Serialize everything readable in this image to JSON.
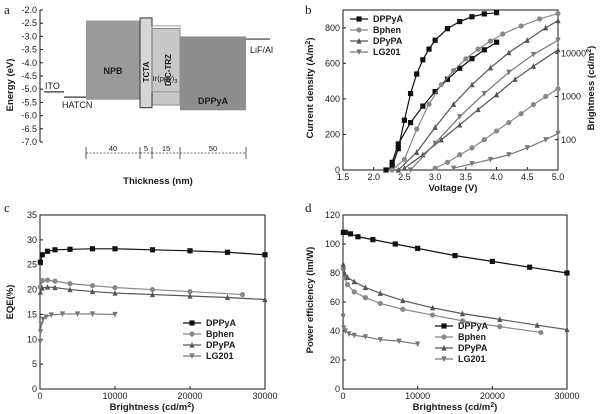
{
  "panels": {
    "a": {
      "letter": "a",
      "ylabel": "Energy (eV)",
      "xlabel": "Thickness (nm)",
      "ylim": [
        -7.0,
        -2.0
      ],
      "yticks": [
        "-2.0",
        "-2.5",
        "-3.0",
        "-3.5",
        "-4.0",
        "-4.5",
        "-5.0",
        "-5.5",
        "-6.0",
        "-6.5",
        "-7.0"
      ],
      "layers": [
        {
          "name": "ITO",
          "label": "ITO",
          "level": -5.1,
          "thickness": null
        },
        {
          "name": "HATCN",
          "label": "HATCN",
          "level": -5.3,
          "thickness": null
        },
        {
          "name": "NPB",
          "label": "NPB",
          "homo": -5.4,
          "lumo": -2.4,
          "thickness": "40"
        },
        {
          "name": "TCTA",
          "label": "TCTA",
          "homo": -5.7,
          "lumo": -2.3,
          "thickness": "5"
        },
        {
          "name": "DIC-TRZ",
          "label": "DIC-TRZ",
          "homo": -5.6,
          "lumo": -2.7,
          "thickness": "15"
        },
        {
          "name": "DPPyA",
          "label": "DPPyA",
          "homo": -5.8,
          "lumo": -3.0,
          "thickness": "50"
        },
        {
          "name": "LiF/Al",
          "label": "LiF/Al",
          "level": -3.1,
          "thickness": null
        }
      ],
      "dopant": {
        "label": "Ir(ppy)",
        "sub": "3",
        "homo": -5.1,
        "lumo": -2.6
      }
    },
    "b": {
      "letter": "b",
      "ylabel": "Current density (A/m",
      "ylabel_sup": "2",
      "ylabel_end": ")",
      "y2label": "Brightness (cd/m",
      "y2label_sup": "2",
      "y2label_end": ")",
      "xlabel": "Voltage (V)"
    },
    "c": {
      "letter": "c",
      "ylabel": "EQE(%)",
      "xlabel": "Brightness (cd/m",
      "xlabel_sup": "2",
      "xlabel_end": ")"
    },
    "d": {
      "letter": "d",
      "ylabel": "Power efficiency (lm/W)",
      "xlabel": "Brightness (cd/m",
      "xlabel_sup": "2",
      "xlabel_end": ")"
    }
  },
  "chart_data": [
    {
      "panel": "b",
      "type": "line",
      "xlabel": "Voltage (V)",
      "ylabel": "Current density (A/m2)",
      "y2label": "Brightness (cd/m2)",
      "xlim": [
        1.5,
        5.0
      ],
      "xticks": [
        1.5,
        2.0,
        2.5,
        3.0,
        3.5,
        4.0,
        4.5,
        5.0
      ],
      "ylim": [
        0,
        900
      ],
      "yticks": [
        0,
        200,
        400,
        600,
        800
      ],
      "y2_scale": "log",
      "y2lim": [
        20,
        100000
      ],
      "y2ticks": [
        100,
        1000,
        10000
      ],
      "y2ticklabels": [
        "100",
        "1000",
        "10000"
      ],
      "series": [
        {
          "name": "DPPyA",
          "marker": "square",
          "color": "#111111",
          "current_density": {
            "x": [
              2.2,
              2.3,
              2.4,
              2.5,
              2.6,
              2.7,
              2.8,
              2.9,
              3.0,
              3.2,
              3.4,
              3.6,
              3.8,
              4.0
            ],
            "y": [
              0,
              20,
              120,
              280,
              430,
              540,
              620,
              680,
              730,
              795,
              835,
              862,
              878,
              885
            ]
          },
          "brightness": {
            "x": [
              2.3,
              2.4,
              2.6,
              2.8,
              3.0,
              3.2,
              3.4,
              3.6,
              3.8,
              4.0
            ],
            "y": [
              30,
              80,
              250,
              600,
              1300,
              2500,
              4500,
              7500,
              12000,
              18000
            ]
          }
        },
        {
          "name": "Bphen",
          "marker": "circle",
          "color": "#888888",
          "current_density": {
            "x": [
              2.3,
              2.5,
              2.7,
              2.9,
              3.1,
              3.3,
              3.5,
              3.7,
              3.9,
              4.1,
              4.4,
              4.7,
              5.0
            ],
            "y": [
              0,
              60,
              230,
              370,
              480,
              560,
              625,
              680,
              725,
              765,
              810,
              850,
              880
            ]
          },
          "brightness": {
            "x": [
              3.0,
              3.2,
              3.4,
              3.6,
              3.8,
              4.0,
              4.2,
              4.4,
              4.6,
              4.8,
              5.0
            ],
            "y": [
              22,
              30,
              45,
              65,
              100,
              160,
              250,
              400,
              650,
              1000,
              1500
            ]
          }
        },
        {
          "name": "DPyPA",
          "marker": "triangle-up",
          "color": "#555555",
          "current_density": {
            "x": [
              2.4,
              2.7,
              3.0,
              3.3,
              3.6,
              3.9,
              4.2,
              4.5,
              4.8,
              5.0
            ],
            "y": [
              0,
              100,
              240,
              370,
              480,
              575,
              660,
              730,
              800,
              840
            ]
          },
          "brightness": {
            "x": [
              2.5,
              2.8,
              3.1,
              3.4,
              3.7,
              4.0,
              4.3,
              4.6,
              5.0
            ],
            "y": [
              22,
              45,
              100,
              220,
              500,
              1100,
              2500,
              5000,
              12000
            ]
          }
        },
        {
          "name": "LG201",
          "marker": "triangle-down",
          "color": "#777777",
          "current_density": {
            "x": [
              2.6,
              3.0,
              3.4,
              3.8,
              4.2,
              4.6,
              5.0
            ],
            "y": [
              0,
              150,
              300,
              430,
              550,
              650,
              730
            ]
          },
          "brightness": {
            "x": [
              3.3,
              3.6,
              3.9,
              4.2,
              4.5,
              4.8,
              5.0
            ],
            "y": [
              22,
              28,
              35,
              45,
              65,
              100,
              140
            ]
          }
        }
      ]
    },
    {
      "panel": "c",
      "type": "line",
      "xlabel": "Brightness (cd/m2)",
      "ylabel": "EQE(%)",
      "xlim": [
        0,
        30000
      ],
      "xticks": [
        0,
        10000,
        20000,
        30000
      ],
      "ylim": [
        0,
        35
      ],
      "yticks": [
        0,
        5,
        10,
        15,
        20,
        25,
        30,
        35
      ],
      "series": [
        {
          "name": "DPPyA",
          "marker": "square",
          "color": "#111111",
          "x": [
            50,
            300,
            1000,
            2000,
            4000,
            7000,
            10000,
            15000,
            20000,
            25000,
            30000
          ],
          "y": [
            25.5,
            27.0,
            27.7,
            28.0,
            28.1,
            28.2,
            28.2,
            28.0,
            27.8,
            27.5,
            27.0
          ]
        },
        {
          "name": "Bphen",
          "marker": "circle",
          "color": "#888888",
          "x": [
            50,
            300,
            1000,
            2000,
            4000,
            7000,
            10000,
            15000,
            20000,
            27000
          ],
          "y": [
            20.5,
            21.8,
            21.9,
            21.7,
            21.2,
            20.8,
            20.4,
            20.0,
            19.6,
            19.0
          ]
        },
        {
          "name": "DPyPA",
          "marker": "triangle-up",
          "color": "#555555",
          "x": [
            50,
            300,
            1000,
            2000,
            4000,
            7000,
            10000,
            15000,
            20000,
            25000,
            30000
          ],
          "y": [
            19.5,
            20.3,
            20.5,
            20.4,
            20.0,
            19.6,
            19.3,
            19.0,
            18.7,
            18.4,
            18.0
          ]
        },
        {
          "name": "LG201",
          "marker": "triangle-down",
          "color": "#777777",
          "x": [
            20,
            60,
            150,
            400,
            800,
            1500,
            3000,
            5000,
            7000,
            10000
          ],
          "y": [
            9.5,
            11.5,
            13.0,
            14.0,
            14.5,
            14.9,
            15.1,
            15.1,
            15.1,
            15.0
          ]
        }
      ],
      "legend": "right-lower"
    },
    {
      "panel": "d",
      "type": "line",
      "xlabel": "Brightness (cd/m2)",
      "ylabel": "Power efficiency (lm/W)",
      "xlim": [
        0,
        30000
      ],
      "xticks": [
        0,
        10000,
        20000,
        30000
      ],
      "ylim": [
        0,
        120
      ],
      "yticks": [
        0,
        20,
        40,
        60,
        80,
        100,
        120
      ],
      "series": [
        {
          "name": "DPPyA",
          "marker": "square",
          "color": "#111111",
          "x": [
            50,
            300,
            1000,
            2000,
            4000,
            7000,
            10000,
            15000,
            20000,
            25000,
            30000
          ],
          "y": [
            108,
            108,
            107,
            105,
            103,
            100,
            97,
            92,
            88,
            84,
            80
          ]
        },
        {
          "name": "Bphen",
          "marker": "circle",
          "color": "#888888",
          "x": [
            30,
            200,
            600,
            1500,
            3000,
            5000,
            8000,
            12000,
            16000,
            21000,
            26500
          ],
          "y": [
            83,
            77,
            72,
            67,
            63,
            59,
            55,
            51,
            47,
            43,
            39
          ]
        },
        {
          "name": "DPyPA",
          "marker": "triangle-up",
          "color": "#555555",
          "x": [
            30,
            200,
            600,
            1500,
            3000,
            5000,
            8000,
            12000,
            16000,
            21000,
            26000,
            30000
          ],
          "y": [
            86,
            80,
            77,
            74,
            70,
            66,
            61,
            56,
            52,
            48,
            44,
            41
          ]
        },
        {
          "name": "LG201",
          "marker": "triangle-down",
          "color": "#777777",
          "x": [
            20,
            100,
            300,
            800,
            1500,
            3000,
            5000,
            7500,
            10000
          ],
          "y": [
            50,
            42,
            40,
            38,
            37,
            36,
            34,
            33,
            31
          ]
        }
      ],
      "legend": "right-lower"
    }
  ]
}
